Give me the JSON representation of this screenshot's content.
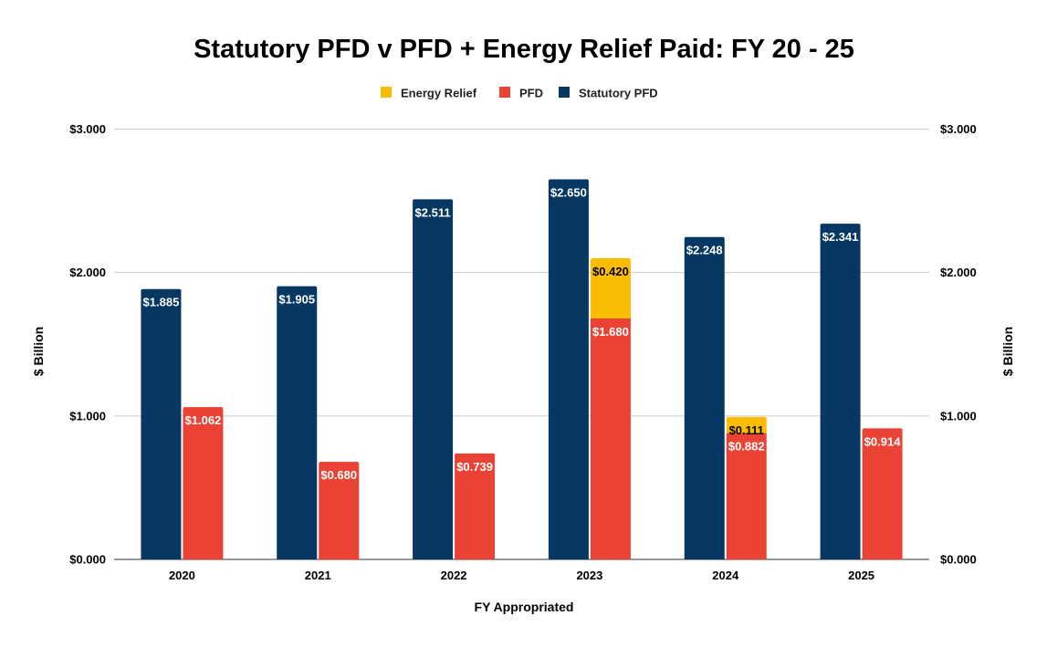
{
  "chart_data": {
    "type": "bar",
    "title": "Statutory PFD v PFD + Energy Relief Paid: FY 20 - 25",
    "xlabel": "FY Appropriated",
    "ylabel": "$ Billion",
    "ylabel_right": "$ Billion",
    "ylim": [
      0,
      3
    ],
    "yticks": [
      {
        "value": 0,
        "label": "$0.000"
      },
      {
        "value": 1,
        "label": "$1.000"
      },
      {
        "value": 2,
        "label": "$2.000"
      },
      {
        "value": 3,
        "label": "$3.000"
      }
    ],
    "grid": true,
    "legend_position": "top",
    "categories": [
      "2020",
      "2021",
      "2022",
      "2023",
      "2024",
      "2025"
    ],
    "legend": [
      {
        "name": "Energy Relief",
        "color": "#fbbc04"
      },
      {
        "name": "PFD",
        "color": "#ea4335"
      },
      {
        "name": "Statutory PFD",
        "color": "#073763"
      }
    ],
    "series": [
      {
        "name": "Statutory PFD",
        "color": "#073763",
        "values": [
          1.885,
          1.905,
          2.511,
          2.65,
          2.248,
          2.341
        ],
        "labels": [
          "$1.885",
          "$1.905",
          "$2.511",
          "$2.650",
          "$2.248",
          "$2.341"
        ]
      },
      {
        "name": "PFD",
        "color": "#ea4335",
        "values": [
          1.062,
          0.68,
          0.739,
          1.68,
          0.882,
          0.914
        ],
        "labels": [
          "$1.062",
          "$0.680",
          "$0.739",
          "$1.680",
          "$0.882",
          "$0.914"
        ]
      },
      {
        "name": "Energy Relief",
        "color": "#fbbc04",
        "stacked_on": "PFD",
        "values": [
          null,
          null,
          null,
          0.42,
          0.111,
          null
        ],
        "labels": [
          "",
          "",
          "",
          "$0.420",
          "$0.111",
          ""
        ]
      }
    ]
  }
}
